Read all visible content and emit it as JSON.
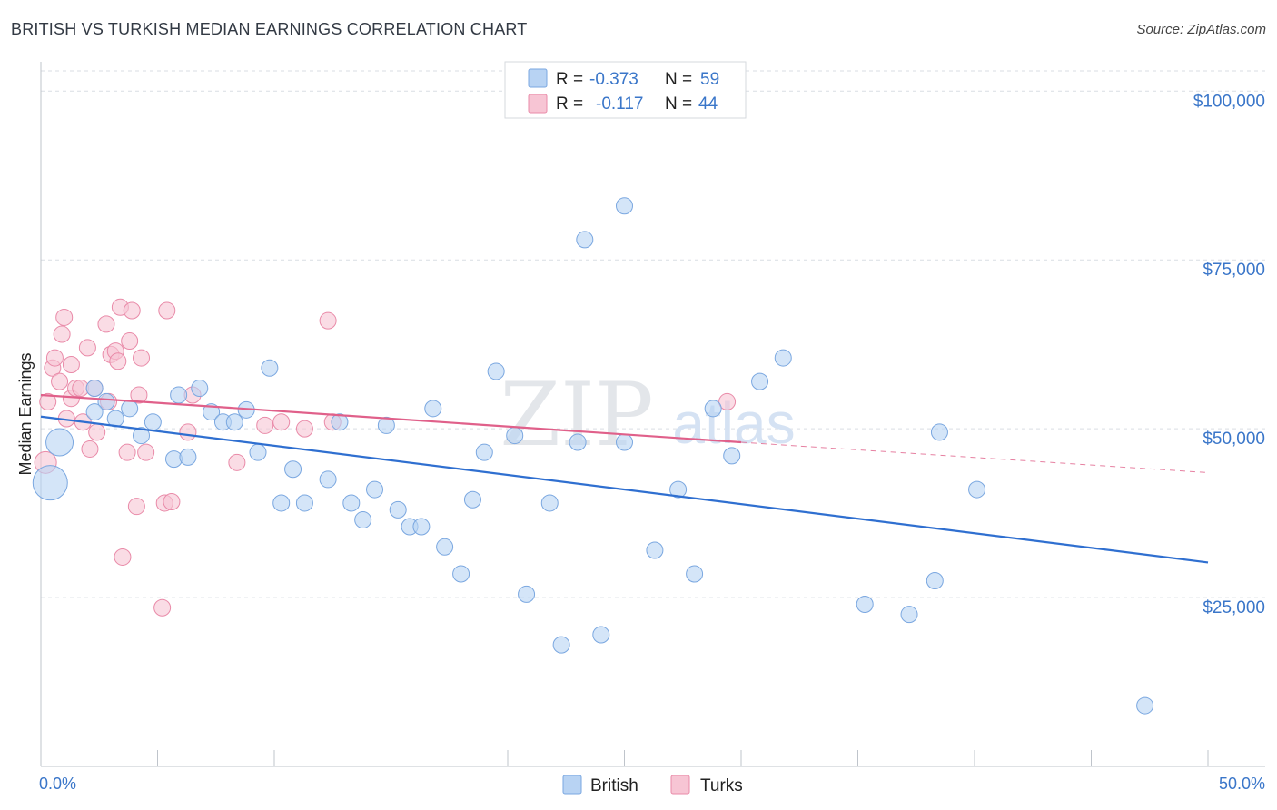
{
  "title": "BRITISH VS TURKISH MEDIAN EARNINGS CORRELATION CHART",
  "source": "Source: ZipAtlas.com",
  "watermark": {
    "zip": "ZIP",
    "atlas": "atlas"
  },
  "legend": {
    "british": {
      "r_label": "R =",
      "r_value": "-0.373",
      "n_label": "N =",
      "n_value": "59"
    },
    "turks": {
      "r_label": "R =",
      "r_value": "-0.117",
      "n_label": "N =",
      "n_value": "44"
    }
  },
  "colors": {
    "british_fill": "#b8d3f3",
    "british_stroke": "#7aa7e0",
    "british_line": "#2f6fd0",
    "turks_fill": "#f7c5d4",
    "turks_stroke": "#e98aa8",
    "turks_line": "#e0608a",
    "axis_text": "#3a76c9",
    "grid": "#d9dde3"
  },
  "chart_data": {
    "type": "scatter",
    "title": "BRITISH VS TURKISH MEDIAN EARNINGS CORRELATION CHART",
    "xlabel": "",
    "ylabel": "Median Earnings",
    "xlim": [
      0,
      50
    ],
    "ylim": [
      0,
      103000
    ],
    "x_tick_labels": [
      "0.0%",
      "50.0%"
    ],
    "y_ticks": [
      25000,
      50000,
      75000,
      100000
    ],
    "y_tick_labels": [
      "$25,000",
      "$50,000",
      "$75,000",
      "$100,000"
    ],
    "grid": true,
    "legend_position": "top-center",
    "series": [
      {
        "name": "British",
        "r": -0.373,
        "n": 59,
        "trend": {
          "x0": 0,
          "y0": 51800,
          "x1": 50,
          "y1": 30200
        },
        "points": [
          [
            0.4,
            42000,
            34
          ],
          [
            0.8,
            48000,
            26
          ],
          [
            2.3,
            56000,
            14
          ],
          [
            2.8,
            54000,
            14
          ],
          [
            2.3,
            52500,
            14
          ],
          [
            3.2,
            51500,
            14
          ],
          [
            3.8,
            53000,
            14
          ],
          [
            4.3,
            49000,
            14
          ],
          [
            4.8,
            51000,
            14
          ],
          [
            5.7,
            45500,
            14
          ],
          [
            5.9,
            55000,
            14
          ],
          [
            6.3,
            45800,
            14
          ],
          [
            6.8,
            56000,
            14
          ],
          [
            7.3,
            52500,
            14
          ],
          [
            7.8,
            51000,
            14
          ],
          [
            8.3,
            51000,
            14
          ],
          [
            8.8,
            52800,
            14
          ],
          [
            9.3,
            46500,
            14
          ],
          [
            9.8,
            59000,
            14
          ],
          [
            10.3,
            39000,
            14
          ],
          [
            10.8,
            44000,
            14
          ],
          [
            11.3,
            39000,
            14
          ],
          [
            12.3,
            42500,
            14
          ],
          [
            12.8,
            51000,
            14
          ],
          [
            13.3,
            39000,
            14
          ],
          [
            13.8,
            36500,
            14
          ],
          [
            14.3,
            41000,
            14
          ],
          [
            14.8,
            50500,
            14
          ],
          [
            15.3,
            38000,
            14
          ],
          [
            15.8,
            35500,
            14
          ],
          [
            16.3,
            35500,
            14
          ],
          [
            16.8,
            53000,
            14
          ],
          [
            17.3,
            32500,
            14
          ],
          [
            18.0,
            28500,
            14
          ],
          [
            18.5,
            39500,
            14
          ],
          [
            19.0,
            46500,
            14
          ],
          [
            19.5,
            58500,
            14
          ],
          [
            20.3,
            49000,
            14
          ],
          [
            20.8,
            25500,
            14
          ],
          [
            21.8,
            39000,
            14
          ],
          [
            22.3,
            18000,
            14
          ],
          [
            23.0,
            48000,
            14
          ],
          [
            23.3,
            78000,
            14
          ],
          [
            24.0,
            19500,
            14
          ],
          [
            25.0,
            83000,
            14
          ],
          [
            25.0,
            48000,
            14
          ],
          [
            26.3,
            32000,
            14
          ],
          [
            27.3,
            41000,
            14
          ],
          [
            28.0,
            28500,
            14
          ],
          [
            28.8,
            53000,
            14
          ],
          [
            29.6,
            46000,
            14
          ],
          [
            30.8,
            57000,
            14
          ],
          [
            31.8,
            60500,
            14
          ],
          [
            35.3,
            24000,
            14
          ],
          [
            37.2,
            22500,
            14
          ],
          [
            38.3,
            27500,
            14
          ],
          [
            38.5,
            49500,
            14
          ],
          [
            40.1,
            41000,
            14
          ],
          [
            47.3,
            9000,
            14
          ]
        ]
      },
      {
        "name": "Turks",
        "r": -0.117,
        "n": 44,
        "trend": {
          "x0": 0,
          "y0": 55000,
          "x1": 30,
          "y1": 48000
        },
        "trend_dashed": {
          "x0": 30,
          "y0": 48000,
          "x1": 50,
          "y1": 43500
        },
        "points": [
          [
            0.2,
            45000,
            20
          ],
          [
            0.3,
            54000,
            14
          ],
          [
            0.5,
            59000,
            14
          ],
          [
            0.6,
            60500,
            14
          ],
          [
            0.8,
            57000,
            14
          ],
          [
            0.9,
            64000,
            14
          ],
          [
            1.0,
            66500,
            14
          ],
          [
            1.1,
            51500,
            14
          ],
          [
            1.3,
            54500,
            14
          ],
          [
            1.3,
            59500,
            14
          ],
          [
            1.5,
            56000,
            14
          ],
          [
            1.7,
            56000,
            14
          ],
          [
            1.8,
            51000,
            14
          ],
          [
            2.0,
            62000,
            14
          ],
          [
            2.1,
            47000,
            14
          ],
          [
            2.3,
            56000,
            14
          ],
          [
            2.4,
            49500,
            14
          ],
          [
            2.8,
            65500,
            14
          ],
          [
            2.9,
            54000,
            14
          ],
          [
            3.0,
            61000,
            14
          ],
          [
            3.2,
            61500,
            14
          ],
          [
            3.3,
            60000,
            14
          ],
          [
            3.4,
            68000,
            14
          ],
          [
            3.5,
            31000,
            14
          ],
          [
            3.7,
            46500,
            14
          ],
          [
            3.8,
            63000,
            14
          ],
          [
            3.9,
            67500,
            14
          ],
          [
            4.1,
            38500,
            14
          ],
          [
            4.2,
            55000,
            14
          ],
          [
            4.3,
            60500,
            14
          ],
          [
            4.5,
            46500,
            14
          ],
          [
            5.2,
            23500,
            14
          ],
          [
            5.3,
            39000,
            14
          ],
          [
            5.4,
            67500,
            14
          ],
          [
            5.6,
            39200,
            14
          ],
          [
            6.3,
            49500,
            14
          ],
          [
            6.5,
            55000,
            14
          ],
          [
            8.4,
            45000,
            14
          ],
          [
            9.6,
            50500,
            14
          ],
          [
            10.3,
            51000,
            14
          ],
          [
            11.3,
            50000,
            14
          ],
          [
            12.3,
            66000,
            14
          ],
          [
            12.5,
            51000,
            14
          ],
          [
            29.4,
            54000,
            14
          ]
        ]
      }
    ]
  }
}
